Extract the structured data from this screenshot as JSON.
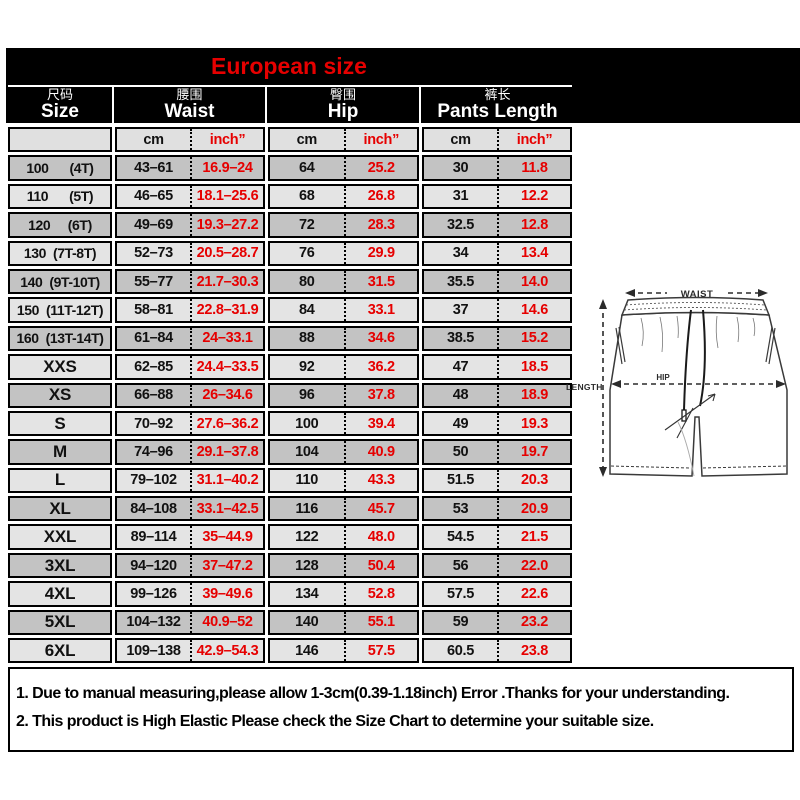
{
  "title": "European size",
  "colors": {
    "banner_bg": "#000000",
    "accent_red": "#e60000",
    "row_dark": "#c3c3c3",
    "row_light": "#e4e4e4"
  },
  "table": {
    "sections": [
      {
        "zh": "尺码",
        "en": "Size"
      },
      {
        "zh": "腰围",
        "en": "Waist"
      },
      {
        "zh": "臀围",
        "en": "Hip"
      },
      {
        "zh": "裤长",
        "en": "Pants Length"
      }
    ],
    "units": {
      "cm": "cm",
      "inch": "inch”"
    },
    "rows": [
      {
        "size": "100      (4T)",
        "cells": [
          "43–61",
          "16.9–24",
          "64",
          "25.2",
          "30",
          "11.8"
        ]
      },
      {
        "size": "110      (5T)",
        "cells": [
          "46–65",
          "18.1–25.6",
          "68",
          "26.8",
          "31",
          "12.2"
        ]
      },
      {
        "size": "120     (6T)",
        "cells": [
          "49–69",
          "19.3–27.2",
          "72",
          "28.3",
          "32.5",
          "12.8"
        ]
      },
      {
        "size": "130  (7T-8T)",
        "cells": [
          "52–73",
          "20.5–28.7",
          "76",
          "29.9",
          "34",
          "13.4"
        ]
      },
      {
        "size": "140  (9T-10T)",
        "cells": [
          "55–77",
          "21.7–30.3",
          "80",
          "31.5",
          "35.5",
          "14.0"
        ]
      },
      {
        "size": "150  (11T-12T)",
        "cells": [
          "58–81",
          "22.8–31.9",
          "84",
          "33.1",
          "37",
          "14.6"
        ]
      },
      {
        "size": "160  (13T-14T)",
        "cells": [
          "61–84",
          "24–33.1",
          "88",
          "34.6",
          "38.5",
          "15.2"
        ]
      },
      {
        "size": "XXS",
        "cells": [
          "62–85",
          "24.4–33.5",
          "92",
          "36.2",
          "47",
          "18.5"
        ]
      },
      {
        "size": "XS",
        "cells": [
          "66–88",
          "26–34.6",
          "96",
          "37.8",
          "48",
          "18.9"
        ]
      },
      {
        "size": "S",
        "cells": [
          "70–92",
          "27.6–36.2",
          "100",
          "39.4",
          "49",
          "19.3"
        ]
      },
      {
        "size": "M",
        "cells": [
          "74–96",
          "29.1–37.8",
          "104",
          "40.9",
          "50",
          "19.7"
        ]
      },
      {
        "size": "L",
        "cells": [
          "79–102",
          "31.1–40.2",
          "110",
          "43.3",
          "51.5",
          "20.3"
        ]
      },
      {
        "size": "XL",
        "cells": [
          "84–108",
          "33.1–42.5",
          "116",
          "45.7",
          "53",
          "20.9"
        ]
      },
      {
        "size": "XXL",
        "cells": [
          "89–114",
          "35–44.9",
          "122",
          "48.0",
          "54.5",
          "21.5"
        ]
      },
      {
        "size": "3XL",
        "cells": [
          "94–120",
          "37–47.2",
          "128",
          "50.4",
          "56",
          "22.0"
        ]
      },
      {
        "size": "4XL",
        "cells": [
          "99–126",
          "39–49.6",
          "134",
          "52.8",
          "57.5",
          "22.6"
        ]
      },
      {
        "size": "5XL",
        "cells": [
          "104–132",
          "40.9–52",
          "140",
          "55.1",
          "59",
          "23.2"
        ]
      },
      {
        "size": "6XL",
        "cells": [
          "109–138",
          "42.9–54.3",
          "146",
          "57.5",
          "60.5",
          "23.8"
        ]
      }
    ]
  },
  "diagram": {
    "waist_label": "WAIST",
    "hip_label": "HIP",
    "length_label": "LENGTH"
  },
  "notes": [
    "1. Due to manual measuring,please allow 1-3cm(0.39-1.18inch) Error .Thanks for your understanding.",
    "2. This product is High Elastic Please check the Size Chart to determine your suitable size."
  ]
}
